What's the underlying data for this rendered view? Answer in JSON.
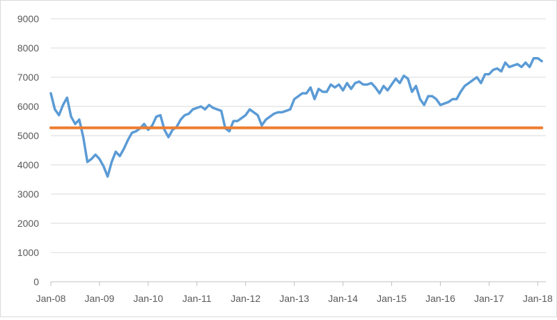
{
  "chart_data": {
    "type": "line",
    "title": "",
    "xlabel": "",
    "ylabel": "",
    "ylim": [
      0,
      9000
    ],
    "yticks": [
      0,
      1000,
      2000,
      3000,
      4000,
      5000,
      6000,
      7000,
      8000,
      9000
    ],
    "xlim": [
      "2008-01",
      "2018-03"
    ],
    "xticks": [
      {
        "date": "2008-01",
        "label": "Jan-08"
      },
      {
        "date": "2009-01",
        "label": "Jan-09"
      },
      {
        "date": "2010-01",
        "label": "Jan-10"
      },
      {
        "date": "2011-01",
        "label": "Jan-11"
      },
      {
        "date": "2012-01",
        "label": "Jan-12"
      },
      {
        "date": "2013-01",
        "label": "Jan-13"
      },
      {
        "date": "2014-01",
        "label": "Jan-14"
      },
      {
        "date": "2015-01",
        "label": "Jan-15"
      },
      {
        "date": "2016-01",
        "label": "Jan-16"
      },
      {
        "date": "2017-01",
        "label": "Jan-17"
      },
      {
        "date": "2018-01",
        "label": "Jan-18"
      }
    ],
    "grid": "horizontal",
    "legend": "none",
    "series": [
      {
        "color": "#5b9bd5",
        "points": [
          [
            "2008-01",
            6450
          ],
          [
            "2008-02",
            5900
          ],
          [
            "2008-03",
            5700
          ],
          [
            "2008-04",
            6050
          ],
          [
            "2008-05",
            6300
          ],
          [
            "2008-06",
            5650
          ],
          [
            "2008-07",
            5400
          ],
          [
            "2008-08",
            5550
          ],
          [
            "2008-09",
            4950
          ],
          [
            "2008-10",
            4100
          ],
          [
            "2008-11",
            4200
          ],
          [
            "2008-12",
            4350
          ],
          [
            "2009-01",
            4200
          ],
          [
            "2009-02",
            3950
          ],
          [
            "2009-03",
            3600
          ],
          [
            "2009-04",
            4100
          ],
          [
            "2009-05",
            4450
          ],
          [
            "2009-06",
            4300
          ],
          [
            "2009-07",
            4550
          ],
          [
            "2009-08",
            4850
          ],
          [
            "2009-09",
            5100
          ],
          [
            "2009-10",
            5150
          ],
          [
            "2009-11",
            5250
          ],
          [
            "2009-12",
            5400
          ],
          [
            "2010-01",
            5200
          ],
          [
            "2010-02",
            5350
          ],
          [
            "2010-03",
            5650
          ],
          [
            "2010-04",
            5700
          ],
          [
            "2010-05",
            5200
          ],
          [
            "2010-06",
            4950
          ],
          [
            "2010-07",
            5200
          ],
          [
            "2010-08",
            5300
          ],
          [
            "2010-09",
            5550
          ],
          [
            "2010-10",
            5700
          ],
          [
            "2010-11",
            5750
          ],
          [
            "2010-12",
            5900
          ],
          [
            "2011-01",
            5950
          ],
          [
            "2011-02",
            6000
          ],
          [
            "2011-03",
            5900
          ],
          [
            "2011-04",
            6050
          ],
          [
            "2011-05",
            5950
          ],
          [
            "2011-06",
            5900
          ],
          [
            "2011-07",
            5850
          ],
          [
            "2011-08",
            5250
          ],
          [
            "2011-09",
            5150
          ],
          [
            "2011-10",
            5500
          ],
          [
            "2011-11",
            5500
          ],
          [
            "2011-12",
            5600
          ],
          [
            "2012-01",
            5700
          ],
          [
            "2012-02",
            5900
          ],
          [
            "2012-03",
            5800
          ],
          [
            "2012-04",
            5700
          ],
          [
            "2012-05",
            5350
          ],
          [
            "2012-06",
            5550
          ],
          [
            "2012-07",
            5650
          ],
          [
            "2012-08",
            5750
          ],
          [
            "2012-09",
            5800
          ],
          [
            "2012-10",
            5800
          ],
          [
            "2012-11",
            5850
          ],
          [
            "2012-12",
            5900
          ],
          [
            "2013-01",
            6250
          ],
          [
            "2013-02",
            6350
          ],
          [
            "2013-03",
            6450
          ],
          [
            "2013-04",
            6450
          ],
          [
            "2013-05",
            6650
          ],
          [
            "2013-06",
            6250
          ],
          [
            "2013-07",
            6600
          ],
          [
            "2013-08",
            6500
          ],
          [
            "2013-09",
            6500
          ],
          [
            "2013-10",
            6750
          ],
          [
            "2013-11",
            6650
          ],
          [
            "2013-12",
            6750
          ],
          [
            "2014-01",
            6550
          ],
          [
            "2014-02",
            6800
          ],
          [
            "2014-03",
            6600
          ],
          [
            "2014-04",
            6800
          ],
          [
            "2014-05",
            6850
          ],
          [
            "2014-06",
            6750
          ],
          [
            "2014-07",
            6750
          ],
          [
            "2014-08",
            6800
          ],
          [
            "2014-09",
            6650
          ],
          [
            "2014-10",
            6450
          ],
          [
            "2014-11",
            6700
          ],
          [
            "2014-12",
            6550
          ],
          [
            "2015-01",
            6750
          ],
          [
            "2015-02",
            6950
          ],
          [
            "2015-03",
            6800
          ],
          [
            "2015-04",
            7050
          ],
          [
            "2015-05",
            6950
          ],
          [
            "2015-06",
            6500
          ],
          [
            "2015-07",
            6700
          ],
          [
            "2015-08",
            6250
          ],
          [
            "2015-09",
            6050
          ],
          [
            "2015-10",
            6350
          ],
          [
            "2015-11",
            6350
          ],
          [
            "2015-12",
            6250
          ],
          [
            "2016-01",
            6050
          ],
          [
            "2016-02",
            6100
          ],
          [
            "2016-03",
            6150
          ],
          [
            "2016-04",
            6250
          ],
          [
            "2016-05",
            6250
          ],
          [
            "2016-06",
            6500
          ],
          [
            "2016-07",
            6700
          ],
          [
            "2016-08",
            6800
          ],
          [
            "2016-09",
            6900
          ],
          [
            "2016-10",
            7000
          ],
          [
            "2016-11",
            6800
          ],
          [
            "2016-12",
            7100
          ],
          [
            "2017-01",
            7100
          ],
          [
            "2017-02",
            7250
          ],
          [
            "2017-03",
            7300
          ],
          [
            "2017-04",
            7200
          ],
          [
            "2017-05",
            7500
          ],
          [
            "2017-06",
            7350
          ],
          [
            "2017-07",
            7400
          ],
          [
            "2017-08",
            7450
          ],
          [
            "2017-09",
            7350
          ],
          [
            "2017-10",
            7500
          ],
          [
            "2017-11",
            7350
          ],
          [
            "2017-12",
            7650
          ],
          [
            "2018-01",
            7650
          ],
          [
            "2018-02",
            7550
          ]
        ]
      },
      {
        "color": "#ed7d31",
        "points": [
          [
            "2008-01",
            5270
          ],
          [
            "2018-02",
            5270
          ]
        ]
      }
    ]
  }
}
